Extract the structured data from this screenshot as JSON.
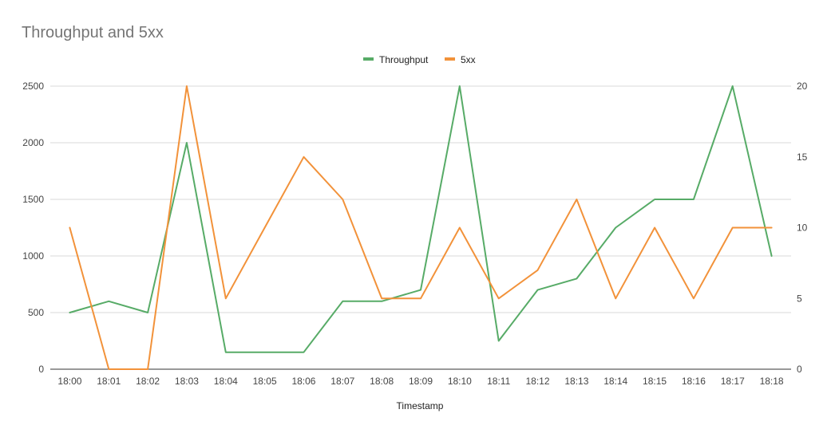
{
  "chart_data": {
    "type": "line",
    "title": "Throughput and 5xx",
    "xlabel": "Timestamp",
    "ylabel": "",
    "y2label": "",
    "categories": [
      "18:00",
      "18:01",
      "18:02",
      "18:03",
      "18:04",
      "18:05",
      "18:06",
      "18:07",
      "18:08",
      "18:09",
      "18:10",
      "18:11",
      "18:12",
      "18:13",
      "18:14",
      "18:15",
      "18:16",
      "18:17",
      "18:18"
    ],
    "ylim": [
      0,
      2500
    ],
    "yticks": [
      0,
      500,
      1000,
      1500,
      2000,
      2500
    ],
    "y2lim": [
      0,
      20
    ],
    "y2ticks": [
      0,
      5,
      10,
      15,
      20
    ],
    "grid": true,
    "legend_position": "top-center",
    "series": [
      {
        "name": "Throughput",
        "axis": "left",
        "color": "#57ab67",
        "values": [
          500,
          600,
          500,
          2000,
          150,
          150,
          150,
          600,
          600,
          700,
          2500,
          250,
          700,
          800,
          1250,
          1500,
          1500,
          2500,
          1000
        ]
      },
      {
        "name": "5xx",
        "axis": "right",
        "color": "#f2923a",
        "values": [
          10,
          0,
          0,
          20,
          5,
          10,
          15,
          12,
          5,
          5,
          10,
          5,
          7,
          12,
          5,
          10,
          5,
          10,
          10
        ]
      }
    ]
  }
}
